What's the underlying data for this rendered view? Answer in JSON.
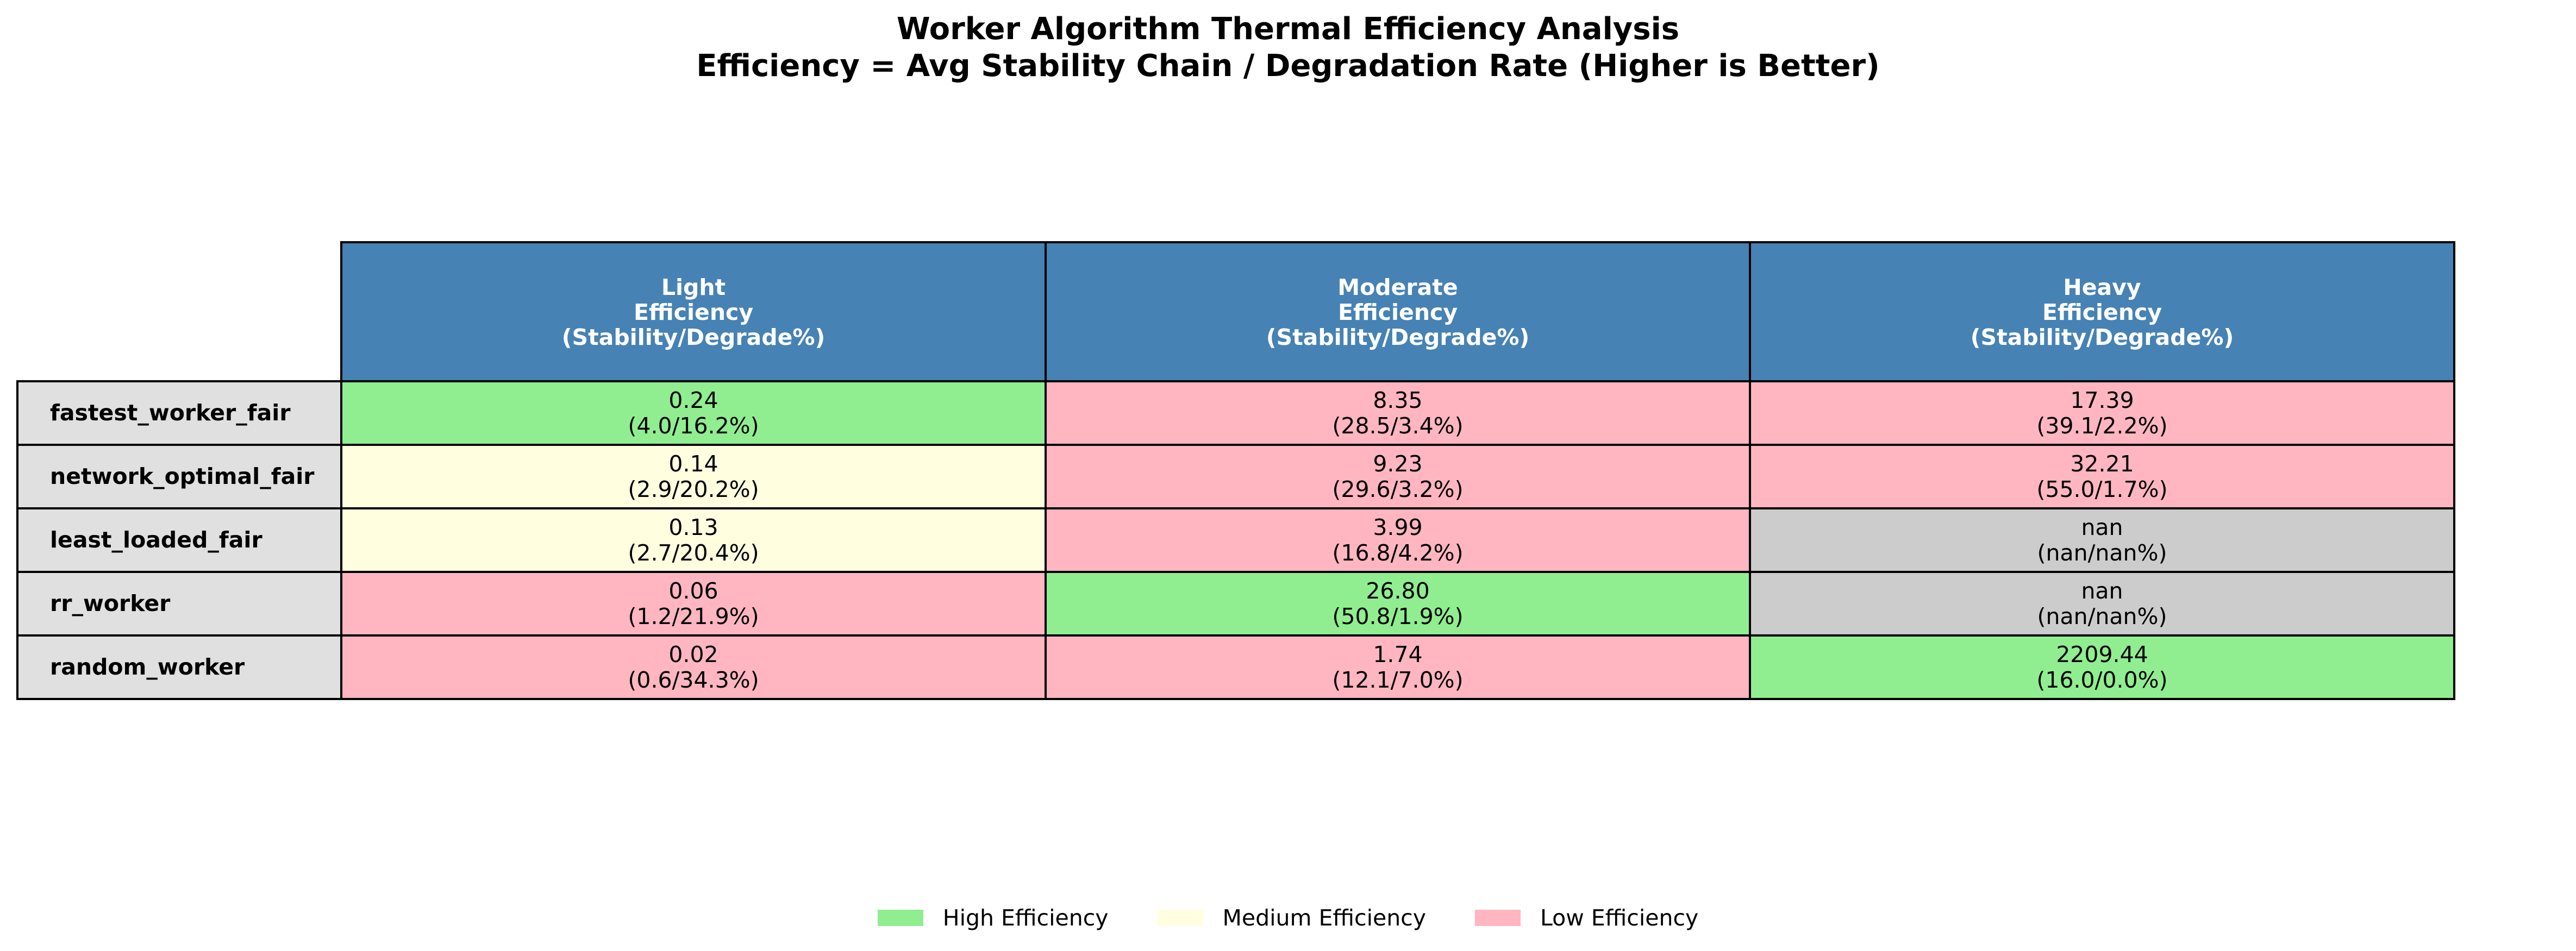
{
  "chart_data": {
    "type": "table",
    "title": "Worker Algorithm Thermal Efficiency Analysis",
    "subtitle": "Efficiency = Avg Stability Chain / Degradation Rate (Higher is Better)",
    "columns": [
      {
        "lines": [
          "Light",
          "Efficiency",
          "(Stability/Degrade%)"
        ]
      },
      {
        "lines": [
          "Moderate",
          "Efficiency",
          "(Stability/Degrade%)"
        ]
      },
      {
        "lines": [
          "Heavy",
          "Efficiency",
          "(Stability/Degrade%)"
        ]
      }
    ],
    "rows": [
      {
        "label": "fastest_worker_fair",
        "cells": [
          {
            "efficiency": "0.24",
            "detail": "(4.0/16.2%)",
            "level": "high"
          },
          {
            "efficiency": "8.35",
            "detail": "(28.5/3.4%)",
            "level": "low"
          },
          {
            "efficiency": "17.39",
            "detail": "(39.1/2.2%)",
            "level": "low"
          }
        ]
      },
      {
        "label": "network_optimal_fair",
        "cells": [
          {
            "efficiency": "0.14",
            "detail": "(2.9/20.2%)",
            "level": "medium"
          },
          {
            "efficiency": "9.23",
            "detail": "(29.6/3.2%)",
            "level": "low"
          },
          {
            "efficiency": "32.21",
            "detail": "(55.0/1.7%)",
            "level": "low"
          }
        ]
      },
      {
        "label": "least_loaded_fair",
        "cells": [
          {
            "efficiency": "0.13",
            "detail": "(2.7/20.4%)",
            "level": "medium"
          },
          {
            "efficiency": "3.99",
            "detail": "(16.8/4.2%)",
            "level": "low"
          },
          {
            "efficiency": "nan",
            "detail": "(nan/nan%)",
            "level": "missing"
          }
        ]
      },
      {
        "label": "rr_worker",
        "cells": [
          {
            "efficiency": "0.06",
            "detail": "(1.2/21.9%)",
            "level": "low"
          },
          {
            "efficiency": "26.80",
            "detail": "(50.8/1.9%)",
            "level": "high"
          },
          {
            "efficiency": "nan",
            "detail": "(nan/nan%)",
            "level": "missing"
          }
        ]
      },
      {
        "label": "random_worker",
        "cells": [
          {
            "efficiency": "0.02",
            "detail": "(0.6/34.3%)",
            "level": "low"
          },
          {
            "efficiency": "1.74",
            "detail": "(12.1/7.0%)",
            "level": "low"
          },
          {
            "efficiency": "2209.44",
            "detail": "(16.0/0.0%)",
            "level": "high"
          }
        ]
      }
    ],
    "legend": {
      "placement": "bottom-center",
      "items": [
        {
          "label": "High Efficiency",
          "level": "high"
        },
        {
          "label": "Medium Efficiency",
          "level": "medium"
        },
        {
          "label": "Low Efficiency",
          "level": "low"
        }
      ]
    },
    "colors": {
      "header": "#4682b4",
      "row_label": "#e0e0e0",
      "high": "#90ee90",
      "medium": "#ffffe0",
      "low": "#ffb6c1",
      "missing": "#cccccc"
    }
  }
}
